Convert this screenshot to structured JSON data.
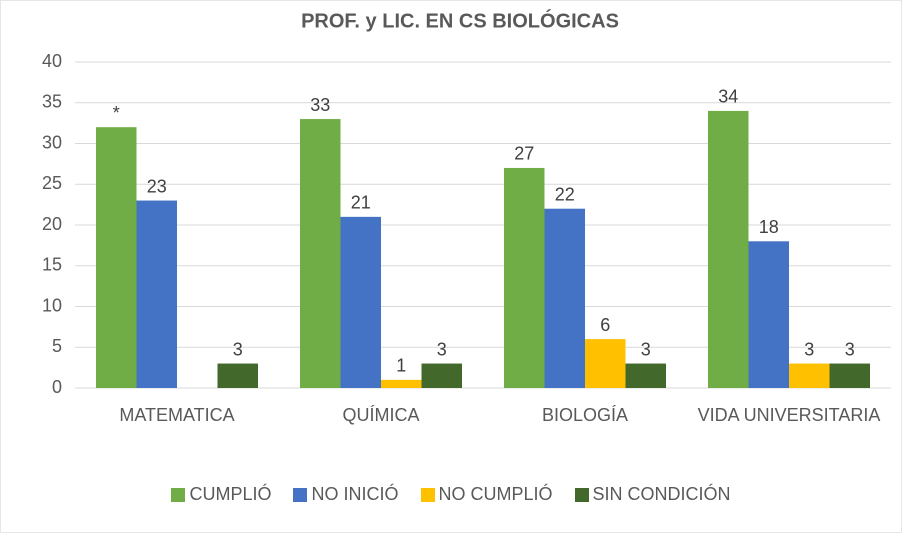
{
  "chart_data": {
    "type": "bar",
    "title": "PROF. y LIC. EN CS BIOLÓGICAS",
    "categories": [
      "MATEMATICA",
      "QUÍMICA",
      "BIOLOGÍA",
      "VIDA UNIVERSITARIA"
    ],
    "series": [
      {
        "name": "CUMPLIÓ",
        "color": "#70ad47",
        "values": [
          32,
          33,
          27,
          34
        ],
        "value_labels": [
          "*",
          "33",
          "27",
          "34"
        ]
      },
      {
        "name": "NO INICIÓ",
        "color": "#4472c4",
        "values": [
          23,
          21,
          22,
          18
        ]
      },
      {
        "name": "NO CUMPLIÓ",
        "color": "#ffc000",
        "values": [
          null,
          1,
          6,
          3
        ]
      },
      {
        "name": "SIN CONDICIÓN",
        "color": "#43682b",
        "values": [
          3,
          3,
          3,
          3
        ]
      }
    ],
    "ylim": [
      0,
      40
    ],
    "yticks": [
      0,
      5,
      10,
      15,
      20,
      25,
      30,
      35,
      40
    ],
    "grid": true,
    "legend": "bottom"
  }
}
